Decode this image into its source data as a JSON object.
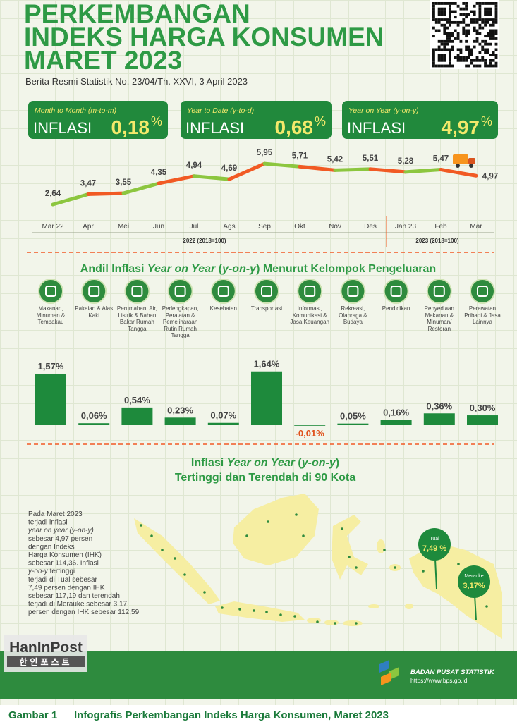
{
  "header": {
    "title_lines": [
      "PERKEMBANGAN",
      "INDEKS HARGA KONSUMEN",
      "MARET 2023"
    ],
    "subtitle": "Berita Resmi Statistik No. 23/04/Th. XXVI, 3 April 2023"
  },
  "cards": [
    {
      "period": "Month to Month (m-to-m)",
      "label": "INFLASI",
      "value": "0,18",
      "unit": "%"
    },
    {
      "period": "Year to Date (y-to-d)",
      "label": "INFLASI",
      "value": "0,68",
      "unit": "%"
    },
    {
      "period": "Year on Year (y-on-y)",
      "label": "INFLASI",
      "value": "4,97",
      "unit": "%"
    }
  ],
  "chart_data": [
    {
      "type": "line",
      "categories": [
        "Mar 22",
        "Apr",
        "Mei",
        "Jun",
        "Jul",
        "Ags",
        "Sep",
        "Okt",
        "Nov",
        "Des",
        "Jan 23",
        "Feb",
        "Mar"
      ],
      "values": [
        2.64,
        3.47,
        3.55,
        4.35,
        4.94,
        4.69,
        5.95,
        5.71,
        5.42,
        5.51,
        5.28,
        5.47,
        4.97
      ],
      "value_labels": [
        "2,64",
        "3,47",
        "3,55",
        "4,35",
        "4,94",
        "4,69",
        "5,95",
        "5,71",
        "5,42",
        "5,51",
        "5,28",
        "5,47",
        "4,97"
      ],
      "segment_colors": [
        "#8cc63f",
        "#f15a24"
      ],
      "ylim": [
        2,
        6.5
      ],
      "periods": [
        "2022 (2018=100)",
        "2023 (2018=100)"
      ]
    },
    {
      "type": "bar",
      "title": [
        "Andil Inflasi ",
        {
          "text": "Year on Year",
          "style": "italic"
        },
        " (",
        {
          "text": "y-on-y",
          "style": "italic"
        },
        ") Menurut Kelompok Pengeluaran"
      ],
      "categories": [
        "Makanan, Minuman & Tembakau",
        "Pakaian & Alas Kaki",
        "Perumahan, Air, Listrik & Bahan Bakar Rumah Tangga",
        "Perlengkapan, Peralatan & Pemeliharaan Rutin Rumah Tangga",
        "Kesehatan",
        "Transportasi",
        "Informasi, Komunikasi & Jasa Keuangan",
        "Rekreasi, Olahraga & Budaya",
        "Pendidikan",
        "Penyediaan Makanan & Minuman/ Restoran",
        "Perawatan Pribadi & Jasa Lainnya"
      ],
      "values": [
        1.57,
        0.06,
        0.54,
        0.23,
        0.07,
        1.64,
        -0.01,
        0.05,
        0.16,
        0.36,
        0.3
      ],
      "value_labels": [
        "1,57%",
        "0,06%",
        "0,54%",
        "0,23%",
        "0,07%",
        "1,64%",
        "-0,01%",
        "0,05%",
        "0,16%",
        "0,36%",
        "0,30%"
      ],
      "color": "#1e8a3c",
      "ylim": [
        -0.2,
        1.8
      ]
    }
  ],
  "map": {
    "title_lines": [
      [
        "Inflasi ",
        {
          "text": "Year on Year",
          "style": "italic"
        },
        " (",
        {
          "text": "y-on-y",
          "style": "italic"
        },
        ")"
      ],
      [
        "Tertinggi dan Terendah di 90 Kota"
      ]
    ],
    "paragraph": [
      [
        "Pada Maret 2023"
      ],
      [
        "terjadi inflasi"
      ],
      [
        {
          "text": "year on year (y-on-y)",
          "style": "italic"
        }
      ],
      [
        "sebesar 4,97 persen"
      ],
      [
        "dengan Indeks"
      ],
      [
        "Harga Konsumen (IHK)"
      ],
      [
        "sebesar 114,36. Inflasi"
      ],
      [
        {
          "text": "y-on-y",
          "style": "italic"
        },
        " tertinggi"
      ],
      [
        "terjadi di Tual sebesar"
      ],
      [
        "7,49 persen dengan IHK"
      ],
      [
        "sebesar 117,19 dan terendah"
      ],
      [
        "terjadi di Merauke sebesar 3,17"
      ],
      [
        "persen dengan IHK sebesar 112,59."
      ]
    ],
    "highest": {
      "city": "Tual",
      "value": "7,49 %"
    },
    "lowest": {
      "city": "Merauke",
      "value": "3,17%"
    }
  },
  "watermark": {
    "name": "HanInPost",
    "korean": "한인포스트"
  },
  "footer": {
    "org": "BADAN PUSAT STATISTIK",
    "url": "https://www.bps.go.id"
  },
  "caption": {
    "number": "Gambar 1",
    "text": "Infografis Perkembangan Indeks Harga Konsumen, Maret 2023"
  }
}
